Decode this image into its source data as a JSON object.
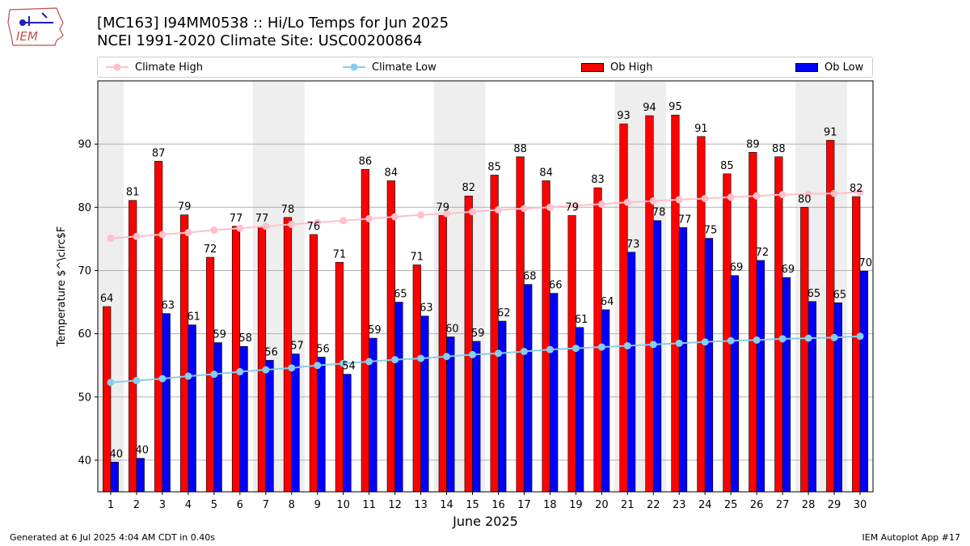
{
  "header": {
    "title_line1": "[MC163] I94MM0538  :: Hi/Lo Temps for Jun 2025",
    "title_line2": "NCEI 1991-2020 Climate Site: USC00200864",
    "logo_text": "IEM"
  },
  "footer": {
    "left": "Generated at 6 Jul 2025 4:04 AM CDT in 0.40s",
    "right": "IEM Autoplot App #17"
  },
  "colors": {
    "ob_high": "#ff0000",
    "ob_low": "#0000ff",
    "climate_high": "#ffc0cb",
    "climate_low": "#87ceeb",
    "weekend_shade": "#eeeeee",
    "grid": "#b0b0b0"
  },
  "legend": {
    "placement": "top, above plot (horizontal)",
    "items": [
      {
        "label": "Climate High",
        "kind": "line-marker",
        "color": "#ffc0cb"
      },
      {
        "label": "Climate Low",
        "kind": "line-marker",
        "color": "#87ceeb"
      },
      {
        "label": "Ob High",
        "kind": "bar",
        "color": "#ff0000"
      },
      {
        "label": "Ob Low",
        "kind": "bar",
        "color": "#0000ff"
      }
    ]
  },
  "chart_data": {
    "type": "bar",
    "title": "[MC163] I94MM0538  :: Hi/Lo Temps for Jun 2025",
    "subtitle": "NCEI 1991-2020 Climate Site: USC00200864",
    "xlabel": "June 2025",
    "ylabel": "Temperature $^\\circ$F",
    "ylim": [
      35,
      100
    ],
    "yticks": [
      40,
      50,
      60,
      70,
      80,
      90
    ],
    "grid": "horizontal",
    "categories": [
      "1",
      "2",
      "3",
      "4",
      "5",
      "6",
      "7",
      "8",
      "9",
      "10",
      "11",
      "12",
      "13",
      "14",
      "15",
      "16",
      "17",
      "18",
      "19",
      "20",
      "21",
      "22",
      "23",
      "24",
      "25",
      "26",
      "27",
      "28",
      "29",
      "30"
    ],
    "shaded_days": [
      1,
      7,
      8,
      14,
      15,
      21,
      22,
      28,
      29
    ],
    "series": [
      {
        "name": "Ob High",
        "kind": "bar",
        "values": [
          64.3,
          81.1,
          87.3,
          78.8,
          72.1,
          77.0,
          77.0,
          78.4,
          75.7,
          71.3,
          86.0,
          84.2,
          70.9,
          78.7,
          81.8,
          85.1,
          88.0,
          84.2,
          78.7,
          83.1,
          93.2,
          94.5,
          94.6,
          91.2,
          85.3,
          88.7,
          88.0,
          80.0,
          90.6,
          81.7
        ],
        "labels": [
          "64",
          "81",
          "87",
          "79",
          "72",
          "77",
          "77",
          "78",
          "76",
          "71",
          "86",
          "84",
          "71",
          "79",
          "82",
          "85",
          "88",
          "84",
          "79",
          "83",
          "93",
          "94",
          "95",
          "91",
          "85",
          "89",
          "88",
          "80",
          "91",
          "82"
        ]
      },
      {
        "name": "Ob Low",
        "kind": "bar",
        "values": [
          39.7,
          40.3,
          63.2,
          61.4,
          58.6,
          58.0,
          55.8,
          56.8,
          56.3,
          53.6,
          59.3,
          65.0,
          62.8,
          59.5,
          58.8,
          62.0,
          67.8,
          66.4,
          61.0,
          63.8,
          72.9,
          77.9,
          76.8,
          75.1,
          69.2,
          71.6,
          68.9,
          65.1,
          64.9,
          69.9
        ],
        "labels": [
          "40",
          "40",
          "63",
          "61",
          "59",
          "58",
          "56",
          "57",
          "56",
          "54",
          "59",
          "65",
          "63",
          "60",
          "59",
          "62",
          "68",
          "66",
          "61",
          "64",
          "73",
          "78",
          "77",
          "75",
          "69",
          "72",
          "69",
          "65",
          "65",
          "70"
        ]
      },
      {
        "name": "Climate High",
        "kind": "line",
        "values": [
          75.1,
          75.4,
          75.7,
          76.0,
          76.4,
          76.7,
          77.0,
          77.3,
          77.6,
          77.9,
          78.2,
          78.5,
          78.8,
          79.0,
          79.3,
          79.6,
          79.8,
          80.0,
          80.3,
          80.5,
          80.8,
          81.0,
          81.2,
          81.4,
          81.6,
          81.8,
          82.0,
          82.1,
          82.2,
          82.4
        ]
      },
      {
        "name": "Climate Low",
        "kind": "line",
        "values": [
          52.3,
          52.6,
          52.9,
          53.3,
          53.6,
          54.0,
          54.3,
          54.6,
          55.0,
          55.3,
          55.6,
          55.9,
          56.1,
          56.4,
          56.7,
          56.9,
          57.2,
          57.5,
          57.7,
          57.9,
          58.1,
          58.3,
          58.5,
          58.7,
          58.9,
          59.0,
          59.2,
          59.3,
          59.4,
          59.6
        ]
      }
    ]
  }
}
